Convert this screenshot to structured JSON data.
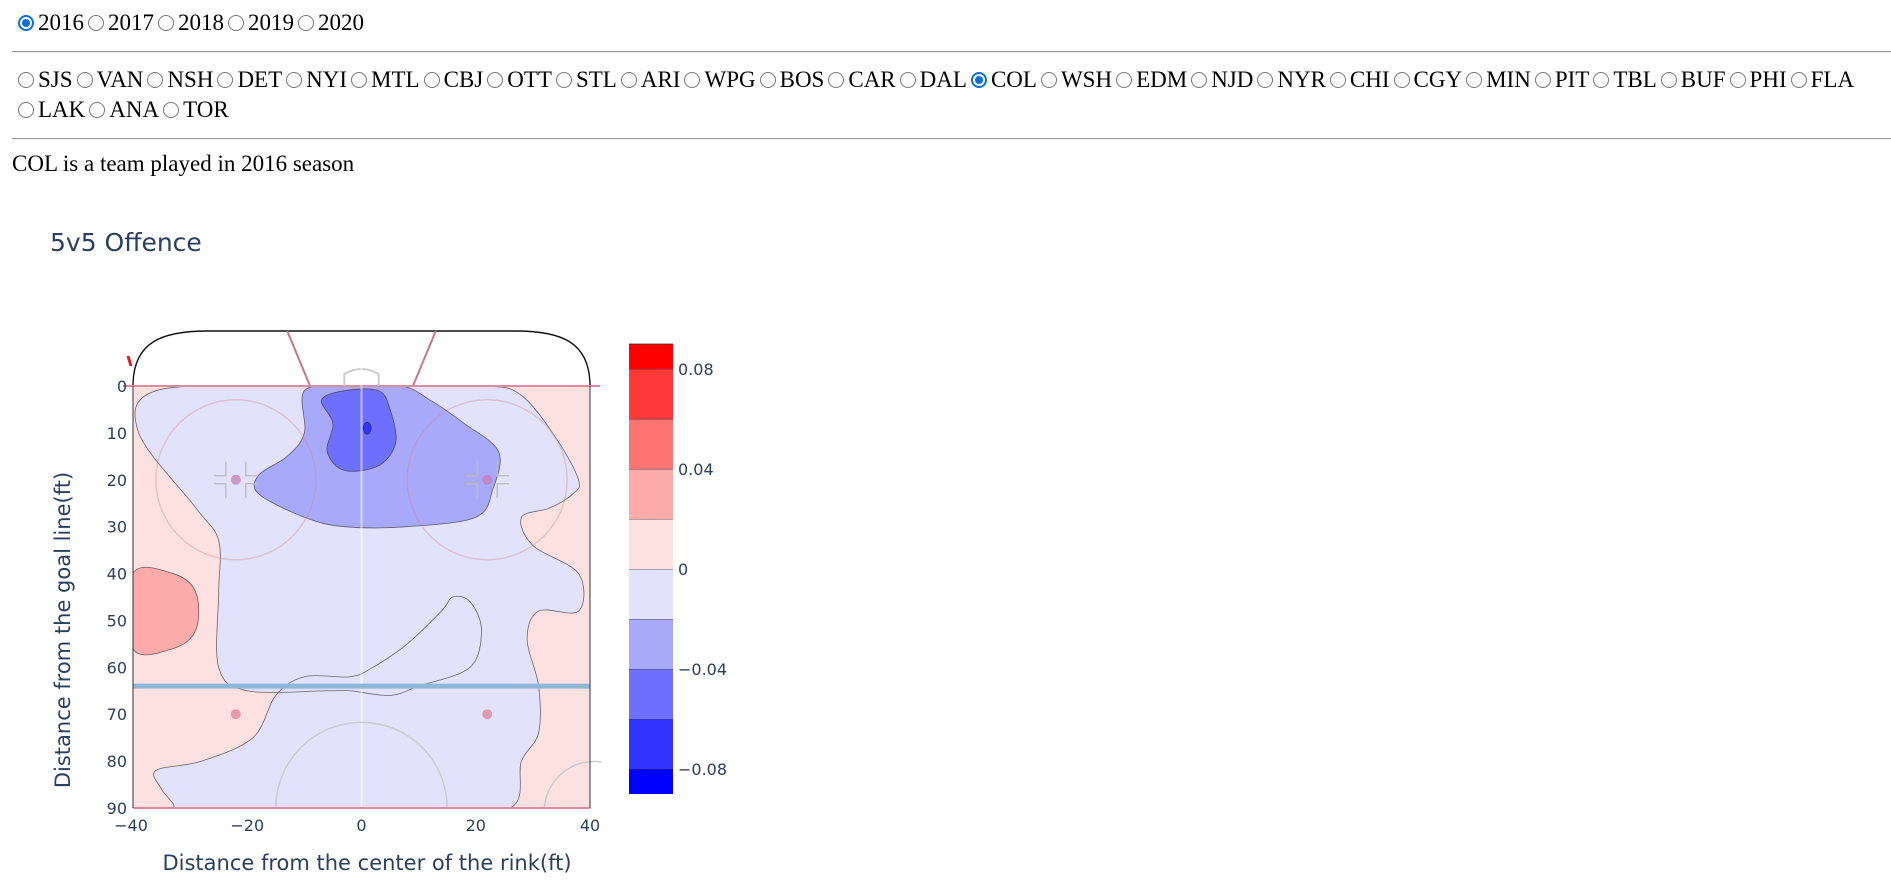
{
  "season_selector": {
    "options": [
      "2016",
      "2017",
      "2018",
      "2019",
      "2020"
    ],
    "selected": "2016"
  },
  "team_selector": {
    "options": [
      "SJS",
      "VAN",
      "NSH",
      "DET",
      "NYI",
      "MTL",
      "CBJ",
      "OTT",
      "STL",
      "ARI",
      "WPG",
      "BOS",
      "CAR",
      "DAL",
      "COL",
      "WSH",
      "EDM",
      "NJD",
      "NYR",
      "CHI",
      "CGY",
      "MIN",
      "PIT",
      "TBL",
      "BUF",
      "PHI",
      "FLA",
      "LAK",
      "ANA",
      "TOR"
    ],
    "selected": "COL"
  },
  "status_text": "COL is a team played in 2016 season",
  "colors": {
    "accent": "#0b6ed8",
    "axis_text": "#2a3f5f"
  },
  "chart_data": {
    "type": "contour",
    "title": "5v5 Offence",
    "xlabel": "Distance from the center of the rink(ft)",
    "ylabel": "Distance from the goal line(ft)",
    "xlim": [
      -40,
      40
    ],
    "ylim": [
      0,
      90
    ],
    "x_ticks": [
      -40,
      -20,
      0,
      20,
      40
    ],
    "y_ticks": [
      0,
      10,
      20,
      30,
      40,
      50,
      60,
      70,
      80,
      90
    ],
    "colorbar": {
      "range": [
        -0.09,
        0.09
      ],
      "ticks": [
        0.08,
        0.04,
        0,
        -0.04,
        -0.08
      ],
      "tick_labels": [
        "0.08",
        "0.04",
        "0",
        "−0.04",
        "−0.08"
      ],
      "levels": [
        {
          "from": -0.09,
          "to": -0.08,
          "color": "#0000ff"
        },
        {
          "from": -0.08,
          "to": -0.06,
          "color": "#3333ff"
        },
        {
          "from": -0.06,
          "to": -0.04,
          "color": "#6f6ffd"
        },
        {
          "from": -0.04,
          "to": -0.02,
          "color": "#a9a9fc"
        },
        {
          "from": -0.02,
          "to": 0,
          "color": "#e2e2fc"
        },
        {
          "from": 0,
          "to": 0.02,
          "color": "#fde1e1"
        },
        {
          "from": 0.02,
          "to": 0.04,
          "color": "#fdaaaa"
        },
        {
          "from": 0.04,
          "to": 0.06,
          "color": "#ff7373"
        },
        {
          "from": 0.06,
          "to": 0.08,
          "color": "#ff3838"
        },
        {
          "from": 0.08,
          "to": 0.09,
          "color": "#ff0000"
        }
      ]
    },
    "regions": [
      {
        "level": -0.06,
        "color": "#6f6ffd",
        "points": [
          [
            -7,
            3
          ],
          [
            -3,
            1
          ],
          [
            3,
            1
          ],
          [
            5,
            5
          ],
          [
            6,
            12
          ],
          [
            3,
            17
          ],
          [
            -3,
            18
          ],
          [
            -6,
            14
          ],
          [
            -5,
            8
          ]
        ]
      },
      {
        "level": -0.04,
        "color": "#a9a9fc",
        "points": [
          [
            -10,
            1
          ],
          [
            -3,
            0
          ],
          [
            7,
            0
          ],
          [
            12,
            3
          ],
          [
            18,
            8
          ],
          [
            24,
            14
          ],
          [
            23,
            22
          ],
          [
            20,
            28
          ],
          [
            8,
            30
          ],
          [
            -3,
            30
          ],
          [
            -10,
            28
          ],
          [
            -18,
            23
          ],
          [
            -18,
            19
          ],
          [
            -13,
            15
          ],
          [
            -10,
            10
          ]
        ]
      },
      {
        "level": 0.02,
        "color": "#fdaaaa",
        "points": [
          [
            -40,
            40
          ],
          [
            -33,
            40
          ],
          [
            -29,
            44
          ],
          [
            -29,
            52
          ],
          [
            -33,
            56
          ],
          [
            -40,
            56
          ]
        ]
      },
      {
        "level": -0.02,
        "color": "#e2e2fc",
        "points": [
          [
            -36,
            1
          ],
          [
            -14,
            0
          ],
          [
            7,
            0
          ],
          [
            22,
            0
          ],
          [
            28,
            2
          ],
          [
            34,
            11
          ],
          [
            38,
            20
          ],
          [
            37,
            23
          ],
          [
            33,
            26
          ],
          [
            28,
            28
          ],
          [
            30,
            34
          ],
          [
            38,
            40
          ],
          [
            38,
            48
          ],
          [
            31,
            48
          ],
          [
            29,
            54
          ],
          [
            31,
            64
          ],
          [
            31,
            74
          ],
          [
            28,
            80
          ],
          [
            26,
            90
          ],
          [
            10,
            90
          ],
          [
            -20,
            90
          ],
          [
            -33,
            90
          ],
          [
            -40,
            90
          ],
          [
            -33,
            90
          ],
          [
            -35,
            86
          ],
          [
            -36,
            82
          ],
          [
            -28,
            80
          ],
          [
            -19,
            75
          ],
          [
            -15,
            66
          ],
          [
            -10,
            62
          ],
          [
            -2,
            62
          ],
          [
            2,
            60
          ],
          [
            8,
            55
          ],
          [
            14,
            48
          ],
          [
            16,
            45
          ],
          [
            19,
            46
          ],
          [
            21,
            52
          ],
          [
            19,
            60
          ],
          [
            10,
            64
          ],
          [
            5,
            66
          ],
          [
            -2,
            65
          ],
          [
            -6,
            65
          ],
          [
            -20,
            65
          ],
          [
            -25,
            60
          ],
          [
            -25,
            44
          ],
          [
            -25,
            33
          ],
          [
            -29,
            26
          ],
          [
            -39,
            10
          ]
        ]
      }
    ],
    "reference_points": [
      {
        "label": "left faceoff dot zone",
        "x": -22,
        "y": 20
      },
      {
        "label": "right faceoff dot zone",
        "x": 22,
        "y": 20
      },
      {
        "label": "left neutral dot",
        "x": -22,
        "y": 70
      },
      {
        "label": "right neutral dot",
        "x": 22,
        "y": 70
      },
      {
        "label": "shot peak",
        "x": 1,
        "y": 9
      }
    ],
    "blue_line_y": 64
  }
}
